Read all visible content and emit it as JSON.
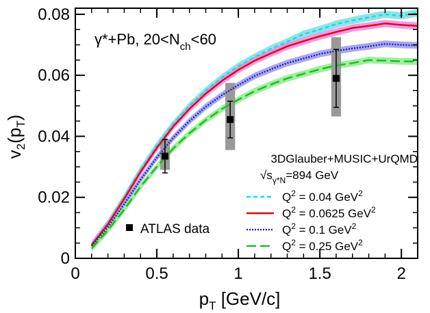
{
  "chart_data": {
    "type": "line",
    "title": "",
    "annotation": {
      "system": "γ*+Pb, 20<N",
      "system_sub": "ch",
      "system_tail": "<60",
      "model": "3DGlauber+MUSIC+UrQMD",
      "energy_prefix": "√s",
      "energy_sub": "γ*N",
      "energy_value": "=894 GeV"
    },
    "xlabel": {
      "main": "p",
      "sub": "T",
      "tail": " [GeV/c]"
    },
    "ylabel": {
      "main": "v",
      "sub1": "2",
      "mid": "(p",
      "sub2": "T",
      "tail": ")"
    },
    "xlim": [
      0,
      2.1
    ],
    "ylim": [
      0,
      0.082
    ],
    "xticks": [
      0,
      0.5,
      1,
      1.5,
      2
    ],
    "xtick_labels": [
      "0",
      "0.5",
      "1",
      "1.5",
      "2"
    ],
    "yticks": [
      0,
      0.02,
      0.04,
      0.06,
      0.08
    ],
    "ytick_labels": [
      "0",
      "0.02",
      "0.04",
      "0.06",
      "0.08"
    ],
    "legend_position": "bottom-right",
    "series": [
      {
        "name": "Q² = 0.04 GeV²",
        "label_parts": [
          "Q",
          "2",
          " = 0.04 GeV",
          "2"
        ],
        "color": "#00e5ee",
        "band_color": "#7fdede",
        "style": "dashed-short",
        "x": [
          0.1,
          0.2,
          0.3,
          0.4,
          0.5,
          0.6,
          0.7,
          0.8,
          0.9,
          1.0,
          1.1,
          1.2,
          1.3,
          1.4,
          1.5,
          1.6,
          1.7,
          1.8,
          1.9,
          2.0,
          2.1
        ],
        "y": [
          0.0045,
          0.0115,
          0.02,
          0.029,
          0.037,
          0.044,
          0.05,
          0.055,
          0.0593,
          0.063,
          0.066,
          0.0687,
          0.071,
          0.0735,
          0.075,
          0.0768,
          0.078,
          0.079,
          0.08,
          0.0795,
          0.0805
        ],
        "band": 0.0012
      },
      {
        "name": "Q² = 0.0625 GeV²",
        "label_parts": [
          "Q",
          "2",
          " = 0.0625 GeV",
          "2"
        ],
        "color": "#ee0000",
        "band_color": "#ee88ee",
        "style": "solid",
        "x": [
          0.1,
          0.2,
          0.3,
          0.4,
          0.5,
          0.6,
          0.7,
          0.8,
          0.9,
          1.0,
          1.1,
          1.2,
          1.3,
          1.4,
          1.5,
          1.6,
          1.7,
          1.8,
          1.9,
          2.0,
          2.1
        ],
        "y": [
          0.0043,
          0.0112,
          0.0195,
          0.0283,
          0.0362,
          0.0432,
          0.049,
          0.054,
          0.0582,
          0.0618,
          0.0648,
          0.0672,
          0.0695,
          0.0712,
          0.0728,
          0.0742,
          0.0755,
          0.0762,
          0.077,
          0.0765,
          0.0762
        ],
        "band": 0.0012
      },
      {
        "name": "Q² = 0.1 GeV²",
        "label_parts": [
          "Q",
          "2",
          " = 0.1 GeV",
          "2"
        ],
        "color": "#2222bb",
        "band_color": "#9999ee",
        "style": "dotted",
        "x": [
          0.1,
          0.2,
          0.3,
          0.4,
          0.5,
          0.6,
          0.7,
          0.8,
          0.9,
          1.0,
          1.1,
          1.2,
          1.3,
          1.4,
          1.5,
          1.6,
          1.7,
          1.8,
          1.9,
          2.0,
          2.1
        ],
        "y": [
          0.004,
          0.0102,
          0.0178,
          0.0258,
          0.033,
          0.0395,
          0.045,
          0.0497,
          0.0535,
          0.0568,
          0.0598,
          0.062,
          0.064,
          0.0655,
          0.067,
          0.068,
          0.0688,
          0.0695,
          0.0703,
          0.07,
          0.0698
        ],
        "band": 0.0011
      },
      {
        "name": "Q² = 0.25 GeV²",
        "label_parts": [
          "Q",
          "2",
          " = 0.25 GeV",
          "2"
        ],
        "color": "#22bb22",
        "band_color": "#88ee88",
        "style": "dashed-long",
        "x": [
          0.1,
          0.2,
          0.3,
          0.4,
          0.5,
          0.6,
          0.7,
          0.8,
          0.9,
          1.0,
          1.1,
          1.2,
          1.3,
          1.4,
          1.5,
          1.6,
          1.7,
          1.8,
          1.9,
          2.0,
          2.1
        ],
        "y": [
          0.0032,
          0.0092,
          0.016,
          0.0235,
          0.03,
          0.036,
          0.041,
          0.0453,
          0.049,
          0.052,
          0.0548,
          0.057,
          0.059,
          0.0605,
          0.062,
          0.0632,
          0.064,
          0.065,
          0.0648,
          0.0646,
          0.0645
        ],
        "band": 0.0011
      }
    ],
    "data_points": {
      "name": "ATLAS data",
      "marker": "square",
      "color": "#000000",
      "sys_color": "#999999",
      "points": [
        {
          "x": 0.55,
          "y": 0.0335,
          "stat": 0.0055,
          "sys_lo": 0.029,
          "sys_hi": 0.039,
          "sys_halfwidth": 0.03
        },
        {
          "x": 0.95,
          "y": 0.0455,
          "stat": 0.006,
          "sys_lo": 0.0355,
          "sys_hi": 0.0575,
          "sys_halfwidth": 0.03
        },
        {
          "x": 1.6,
          "y": 0.059,
          "stat": 0.0095,
          "sys_lo": 0.0465,
          "sys_hi": 0.0725,
          "sys_halfwidth": 0.03
        }
      ]
    }
  }
}
